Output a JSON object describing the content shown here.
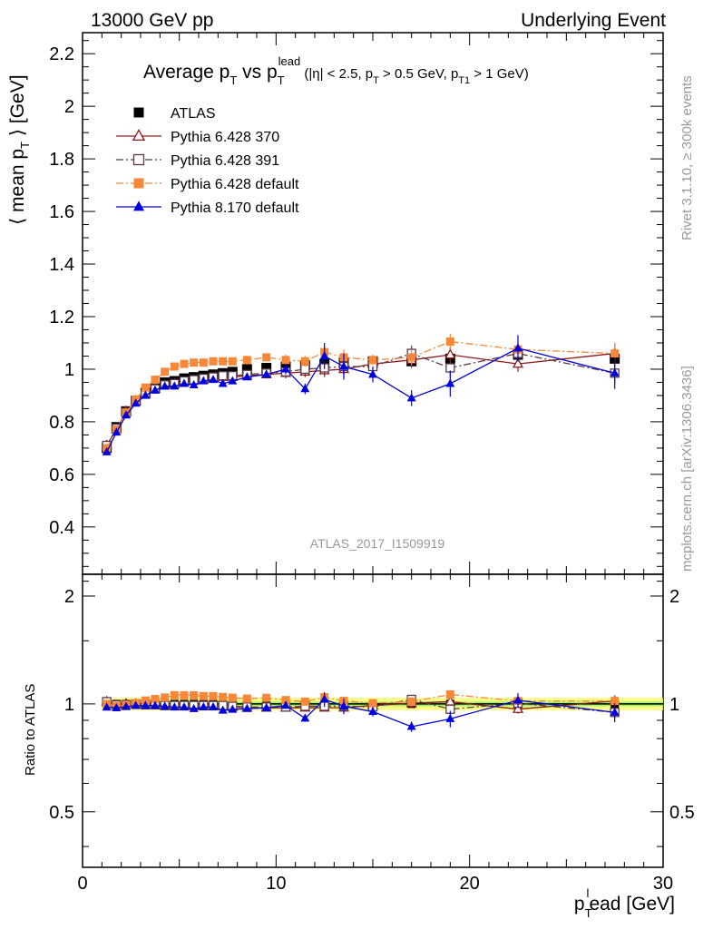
{
  "header": {
    "left": "13000 GeV pp",
    "right": "Underlying Event"
  },
  "title": {
    "main_a": "Average p",
    "main_a_sub": "T",
    "main_b": " vs p",
    "main_b_sub": "T",
    "main_b_sup": "lead",
    "cuts_a": " (|η| < 2.5, p",
    "cuts_a_sub": "T",
    "cuts_b": " > 0.5 GeV, p",
    "cuts_b_sub": "T1",
    "cuts_c": " > 1 GeV)"
  },
  "side_text": {
    "rivet": "Rivet 3.1.10, ≥ 300k events",
    "mcplots": "mcplots.cern.ch [arXiv:1306.3436]"
  },
  "analysis_id": "ATLAS_2017_I1509919",
  "axes": {
    "ylabel_a": "⟨ mean p",
    "ylabel_sub": "T",
    "ylabel_b": " ⟩ [GeV]",
    "ratio_ylabel": "Ratio to ATLAS",
    "xlabel_a": "p",
    "xlabel_sub": "T",
    "xlabel_sup": "l",
    "xlabel_b": "ead [GeV]"
  },
  "legend": [
    {
      "label": "ATLAS",
      "color": "#000000",
      "marker": "filled-square",
      "line": "none"
    },
    {
      "label": "Pythia 6.428 370",
      "color": "#8b1a1a",
      "marker": "open-triangle",
      "line": "solid"
    },
    {
      "label": "Pythia 6.428 391",
      "color": "#5a3a4a",
      "marker": "open-square",
      "line": "dash-dot"
    },
    {
      "label": "Pythia 6.428 default",
      "color": "#f7883a",
      "marker": "filled-square",
      "line": "dash-dot"
    },
    {
      "label": "Pythia 8.170 default",
      "color": "#0000dd",
      "marker": "filled-triangle",
      "line": "solid"
    }
  ],
  "chart_data": {
    "type": "scatter",
    "xlim": [
      0,
      30
    ],
    "ylim": [
      0.22,
      2.28
    ],
    "ratio_ylim": [
      0.35,
      2.3
    ],
    "x_ticks": [
      0,
      10,
      20,
      30
    ],
    "y_ticks": [
      0.4,
      0.6,
      0.8,
      1,
      1.2,
      1.4,
      1.6,
      1.8,
      2,
      2.2
    ],
    "ratio_y_ticks": [
      0.5,
      1,
      2
    ],
    "x": [
      1.25,
      1.75,
      2.25,
      2.75,
      3.25,
      3.75,
      4.25,
      4.75,
      5.25,
      5.75,
      6.25,
      6.75,
      7.25,
      7.75,
      8.5,
      9.5,
      10.5,
      11.5,
      12.5,
      13.5,
      15,
      17,
      19,
      22.5,
      27.5
    ],
    "series": [
      {
        "name": "ATLAS",
        "values": [
          0.7,
          0.78,
          0.84,
          0.88,
          0.91,
          0.93,
          0.95,
          0.955,
          0.965,
          0.97,
          0.975,
          0.98,
          0.985,
          0.99,
          1.0,
          1.005,
          1.01,
          1.015,
          1.02,
          1.025,
          1.03,
          1.03,
          1.04,
          1.055,
          1.04
        ]
      },
      {
        "name": "Pythia 6.428 370",
        "values": [
          0.71,
          0.77,
          0.84,
          0.88,
          0.905,
          0.925,
          0.94,
          0.945,
          0.95,
          0.955,
          0.96,
          0.965,
          0.97,
          0.97,
          0.975,
          0.98,
          0.985,
          0.99,
          0.995,
          1.0,
          1.02,
          1.035,
          1.055,
          1.02,
          1.06
        ],
        "errors": [
          0.01,
          0.01,
          0.01,
          0.01,
          0.01,
          0.01,
          0.01,
          0.01,
          0.01,
          0.01,
          0.01,
          0.01,
          0.01,
          0.01,
          0.01,
          0.015,
          0.02,
          0.02,
          0.025,
          0.03,
          0.02,
          0.03,
          0.03,
          0.03,
          0.04
        ]
      },
      {
        "name": "Pythia 6.428 391",
        "values": [
          0.71,
          0.775,
          0.835,
          0.88,
          0.905,
          0.925,
          0.94,
          0.945,
          0.955,
          0.96,
          0.965,
          0.97,
          0.975,
          0.975,
          0.98,
          0.985,
          0.99,
          1.0,
          1.005,
          1.01,
          1.01,
          1.06,
          1.005,
          1.06,
          0.985
        ],
        "errors": [
          0.01,
          0.01,
          0.01,
          0.01,
          0.01,
          0.01,
          0.01,
          0.01,
          0.01,
          0.01,
          0.01,
          0.01,
          0.01,
          0.01,
          0.01,
          0.015,
          0.02,
          0.02,
          0.025,
          0.03,
          0.02,
          0.03,
          0.03,
          0.03,
          0.04
        ]
      },
      {
        "name": "Pythia 6.428 default",
        "values": [
          0.7,
          0.77,
          0.835,
          0.885,
          0.93,
          0.96,
          0.99,
          1.01,
          1.02,
          1.025,
          1.025,
          1.03,
          1.03,
          1.03,
          1.035,
          1.045,
          1.035,
          1.03,
          1.065,
          1.045,
          1.035,
          1.045,
          1.105,
          1.075,
          1.06
        ],
        "errors": [
          0.01,
          0.01,
          0.01,
          0.01,
          0.01,
          0.01,
          0.01,
          0.01,
          0.01,
          0.01,
          0.01,
          0.01,
          0.01,
          0.01,
          0.01,
          0.015,
          0.02,
          0.02,
          0.025,
          0.03,
          0.02,
          0.03,
          0.03,
          0.03,
          0.04
        ]
      },
      {
        "name": "Pythia 8.170 default",
        "values": [
          0.685,
          0.76,
          0.825,
          0.87,
          0.9,
          0.92,
          0.935,
          0.935,
          0.945,
          0.94,
          0.955,
          0.96,
          0.945,
          0.955,
          0.97,
          0.98,
          1.0,
          0.925,
          1.05,
          1.01,
          0.98,
          0.89,
          0.945,
          1.08,
          0.985
        ],
        "errors": [
          0.01,
          0.01,
          0.01,
          0.01,
          0.01,
          0.01,
          0.01,
          0.01,
          0.01,
          0.01,
          0.01,
          0.01,
          0.01,
          0.01,
          0.01,
          0.015,
          0.02,
          0.02,
          0.05,
          0.05,
          0.03,
          0.03,
          0.05,
          0.05,
          0.06
        ]
      }
    ]
  }
}
